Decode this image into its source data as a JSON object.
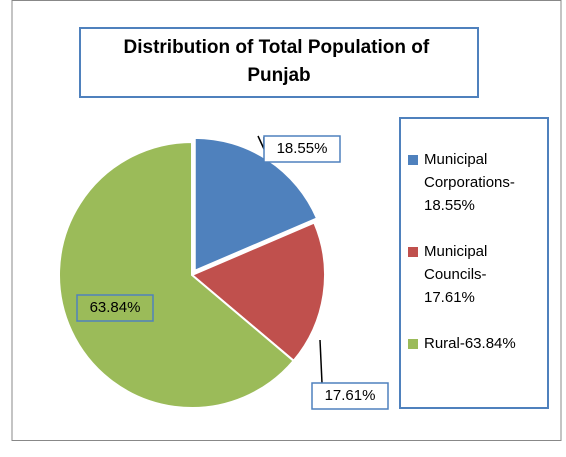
{
  "chart_data": {
    "type": "pie",
    "title": "Distribution of Total Population of Punjab",
    "categories": [
      "Municipal Corporations-18.55%",
      "Municipal Councils-17.61%",
      "Rural-63.84%"
    ],
    "values": [
      18.55,
      17.61,
      63.84
    ],
    "value_labels": [
      "18.55%",
      "17.61%",
      "63.84%"
    ],
    "colors": [
      "#4f81bd",
      "#c0504d",
      "#9bbb59"
    ],
    "legend": "right"
  }
}
